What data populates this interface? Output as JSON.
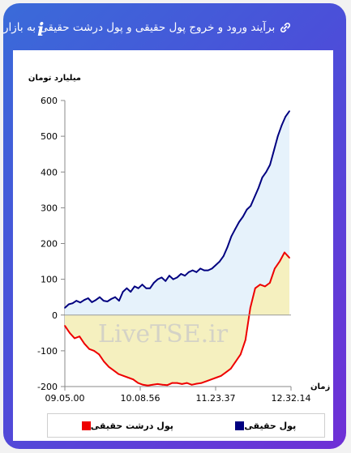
{
  "header": {
    "title": "برآیند ورود و خروج پول حقیقی و پول درشت حقیقی به بازار",
    "info_label": "i",
    "link_icon": "link-icon"
  },
  "watermark": "LiveTSE.ir",
  "chart_data": {
    "type": "area",
    "ylabel": "میلیارد تومان",
    "xlabel": "زمان",
    "ylim": [
      -200,
      600
    ],
    "yticks": [
      -200,
      -100,
      0,
      100,
      200,
      300,
      400,
      500,
      600
    ],
    "x_tick_labels": [
      "09.05.00",
      "10.08.56",
      "11.23.37",
      "12.32.14"
    ],
    "legend_position": "bottom",
    "series": [
      {
        "name": "پول حقیقی",
        "line_color": "#000080",
        "fill_color": "#e6f2fb",
        "values": [
          20,
          30,
          33,
          40,
          35,
          42,
          47,
          36,
          42,
          50,
          40,
          38,
          45,
          50,
          40,
          65,
          75,
          65,
          80,
          75,
          85,
          75,
          75,
          90,
          100,
          105,
          95,
          110,
          100,
          105,
          115,
          110,
          120,
          125,
          120,
          130,
          125,
          125,
          130,
          140,
          150,
          165,
          190,
          220,
          240,
          260,
          275,
          295,
          305,
          330,
          355,
          385,
          400,
          420,
          460,
          500,
          530,
          555,
          570
        ]
      },
      {
        "name": "پول درشت حقیقی",
        "line_color": "#ee0000",
        "fill_color": "#f5f0bf",
        "values": [
          -30,
          -50,
          -65,
          -60,
          -80,
          -95,
          -100,
          -110,
          -130,
          -145,
          -155,
          -165,
          -170,
          -175,
          -180,
          -190,
          -195,
          -197,
          -195,
          -193,
          -195,
          -196,
          -190,
          -190,
          -193,
          -190,
          -195,
          -192,
          -190,
          -185,
          -180,
          -175,
          -170,
          -160,
          -150,
          -130,
          -110,
          -70,
          20,
          75,
          85,
          80,
          90,
          130,
          150,
          175,
          160
        ]
      }
    ]
  }
}
